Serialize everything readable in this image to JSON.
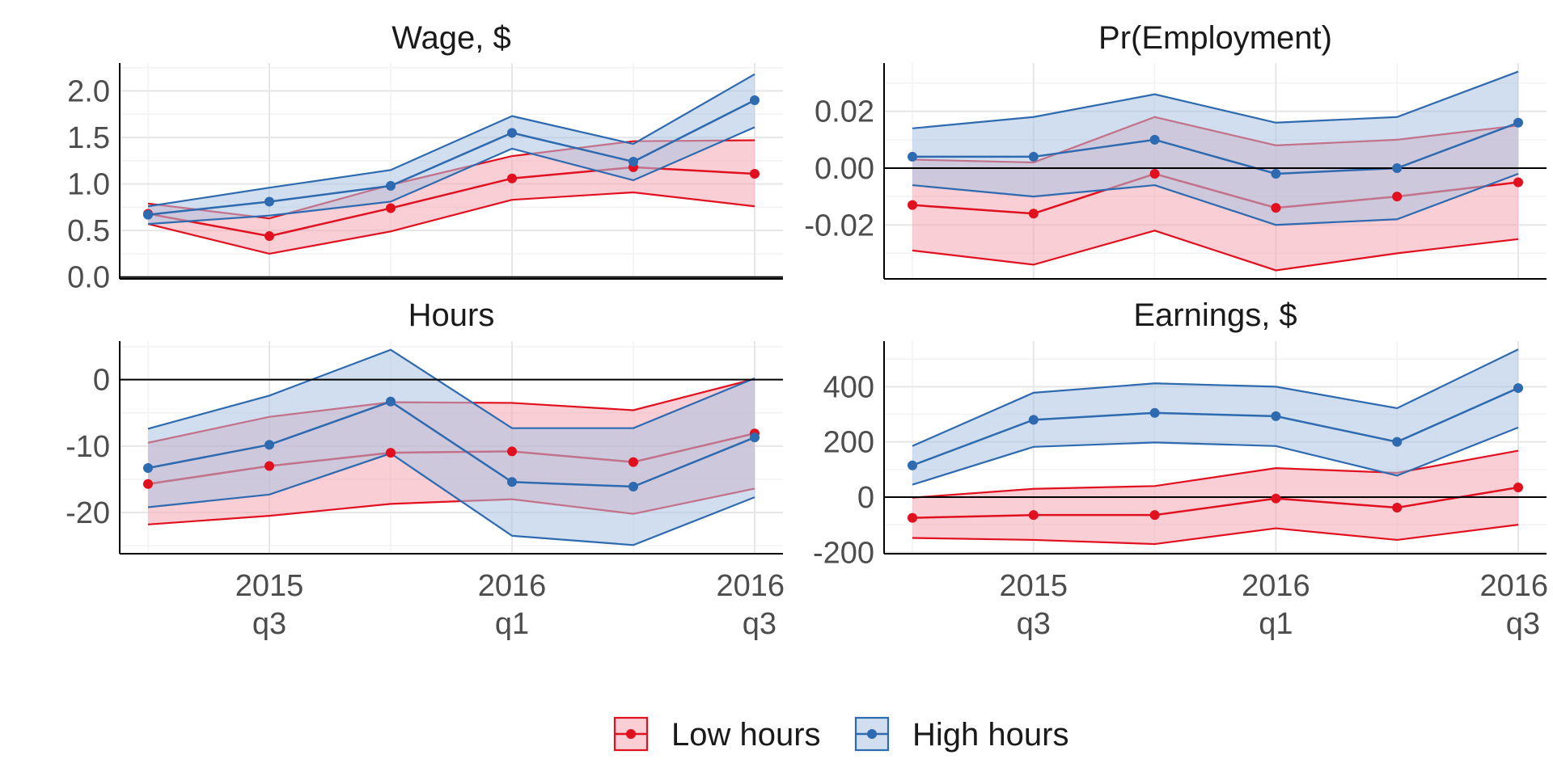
{
  "colors": {
    "low_line": "#E0101F",
    "low_fill": "#F4A6B0",
    "high_line": "#2E6AAF",
    "high_fill": "#A9C2E2",
    "grid_major": "#E6E6E6",
    "grid_minor": "#F2F2F2",
    "axis": "#000000"
  },
  "legend": {
    "items": [
      {
        "key": "low",
        "label": "Low hours"
      },
      {
        "key": "high",
        "label": "High hours"
      }
    ]
  },
  "chart_data": [
    {
      "type": "line",
      "title": "Wage, $",
      "x": [
        0,
        1,
        2,
        3,
        4,
        5
      ],
      "x_ticks": [
        {
          "x": 1,
          "line1": "2015",
          "line2": "q3"
        },
        {
          "x": 3,
          "line1": "2016",
          "line2": "q1"
        },
        {
          "x": 5,
          "line1": "2016",
          "line2": "q3"
        }
      ],
      "show_x_tick_labels": false,
      "ylim": [
        -0.02,
        2.3
      ],
      "y_ticks": [
        "0.0",
        "0.5",
        "1.0",
        "1.5",
        "2.0"
      ],
      "y_tick_values": [
        0,
        0.5,
        1.0,
        1.5,
        2.0
      ],
      "hline_y": 0,
      "series": [
        {
          "name": "Low hours",
          "key": "low",
          "values": [
            0.68,
            0.44,
            0.74,
            1.06,
            1.18,
            1.11
          ],
          "lower": [
            0.57,
            0.25,
            0.49,
            0.83,
            0.91,
            0.76
          ],
          "upper": [
            0.79,
            0.63,
            0.99,
            1.3,
            1.46,
            1.47
          ]
        },
        {
          "name": "High hours",
          "key": "high",
          "values": [
            0.67,
            0.81,
            0.98,
            1.55,
            1.24,
            1.9
          ],
          "lower": [
            0.57,
            0.66,
            0.81,
            1.38,
            1.04,
            1.61
          ],
          "upper": [
            0.76,
            0.96,
            1.15,
            1.73,
            1.43,
            2.18
          ]
        }
      ]
    },
    {
      "type": "line",
      "title": "Pr(Employment)",
      "x": [
        0,
        1,
        2,
        3,
        4,
        5
      ],
      "x_ticks": [
        {
          "x": 1,
          "line1": "2015",
          "line2": "q3"
        },
        {
          "x": 3,
          "line1": "2016",
          "line2": "q1"
        },
        {
          "x": 5,
          "line1": "2016",
          "line2": "q3"
        }
      ],
      "show_x_tick_labels": false,
      "ylim": [
        -0.039,
        0.037
      ],
      "y_ticks": [
        "-0.02",
        "0.00",
        "0.02"
      ],
      "y_tick_values": [
        -0.02,
        0,
        0.02
      ],
      "hline_y": 0,
      "series": [
        {
          "name": "Low hours",
          "key": "low",
          "values": [
            -0.013,
            -0.016,
            -0.002,
            -0.014,
            -0.01,
            -0.005
          ],
          "lower": [
            -0.029,
            -0.034,
            -0.022,
            -0.036,
            -0.03,
            -0.025
          ],
          "upper": [
            0.003,
            0.002,
            0.018,
            0.008,
            0.01,
            0.015
          ]
        },
        {
          "name": "High hours",
          "key": "high",
          "values": [
            0.004,
            0.004,
            0.01,
            -0.002,
            0.0,
            0.016
          ],
          "lower": [
            -0.006,
            -0.01,
            -0.006,
            -0.02,
            -0.018,
            -0.002
          ],
          "upper": [
            0.014,
            0.018,
            0.026,
            0.016,
            0.018,
            0.034
          ]
        }
      ]
    },
    {
      "type": "line",
      "title": "Hours",
      "x": [
        0,
        1,
        2,
        3,
        4,
        5
      ],
      "x_ticks": [
        {
          "x": 1,
          "line1": "2015",
          "line2": "q3"
        },
        {
          "x": 3,
          "line1": "2016",
          "line2": "q1"
        },
        {
          "x": 5,
          "line1": "2016",
          "line2": "q3"
        }
      ],
      "show_x_tick_labels": true,
      "ylim": [
        -26.2,
        5.8
      ],
      "y_ticks": [
        "-20",
        "-10",
        "0"
      ],
      "y_tick_values": [
        -20,
        -10,
        0
      ],
      "hline_y": 0,
      "series": [
        {
          "name": "Low hours",
          "key": "low",
          "values": [
            -15.7,
            -13.0,
            -11.0,
            -10.8,
            -12.4,
            -8.1
          ],
          "lower": [
            -21.8,
            -20.5,
            -18.7,
            -18.0,
            -20.2,
            -16.4
          ],
          "upper": [
            -9.5,
            -5.6,
            -3.4,
            -3.5,
            -4.6,
            0.1
          ]
        },
        {
          "name": "High hours",
          "key": "high",
          "values": [
            -13.3,
            -9.8,
            -3.3,
            -15.4,
            -16.1,
            -8.7
          ],
          "lower": [
            -19.2,
            -17.3,
            -11.1,
            -23.5,
            -24.9,
            -17.7
          ],
          "upper": [
            -7.4,
            -2.4,
            4.5,
            -7.3,
            -7.3,
            0.2
          ]
        }
      ]
    },
    {
      "type": "line",
      "title": "Earnings, $",
      "x": [
        0,
        1,
        2,
        3,
        4,
        5
      ],
      "x_ticks": [
        {
          "x": 1,
          "line1": "2015",
          "line2": "q3"
        },
        {
          "x": 3,
          "line1": "2016",
          "line2": "q1"
        },
        {
          "x": 5,
          "line1": "2016",
          "line2": "q3"
        }
      ],
      "show_x_tick_labels": true,
      "ylim": [
        -205,
        565
      ],
      "y_ticks": [
        "-200",
        "0",
        "200",
        "400"
      ],
      "y_tick_values": [
        -200,
        0,
        200,
        400
      ],
      "hline_y": 0,
      "series": [
        {
          "name": "Low hours",
          "key": "low",
          "values": [
            -75,
            -65,
            -65,
            -5,
            -38,
            35
          ],
          "lower": [
            -148,
            -155,
            -170,
            -113,
            -155,
            -100
          ],
          "upper": [
            -2,
            30,
            40,
            105,
            88,
            168
          ]
        },
        {
          "name": "High hours",
          "key": "high",
          "values": [
            115,
            280,
            305,
            293,
            200,
            395
          ],
          "lower": [
            45,
            182,
            198,
            185,
            78,
            252
          ],
          "upper": [
            185,
            378,
            412,
            400,
            322,
            535
          ]
        }
      ]
    }
  ]
}
